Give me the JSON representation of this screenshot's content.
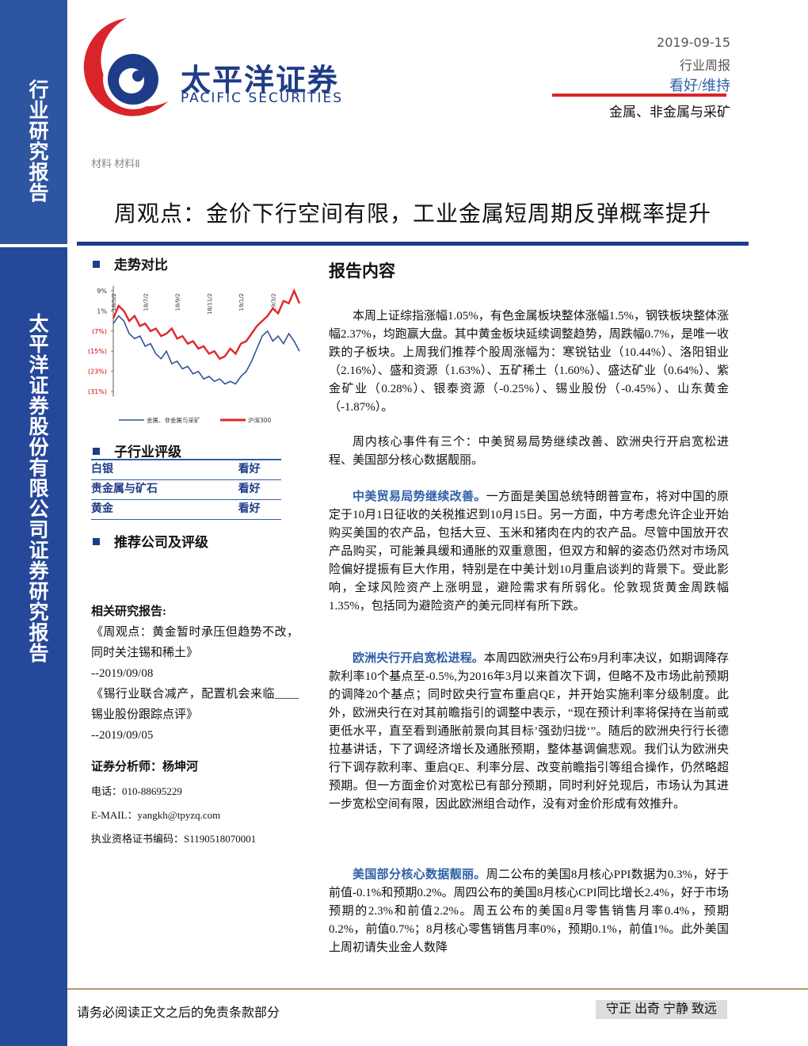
{
  "sidebar": {
    "top": "行业研究报告",
    "bottom": "太平洋证券股份有限公司证券研究报告"
  },
  "logo": {
    "name": "太平洋证券",
    "english": "PACIFIC SECURITIES"
  },
  "header": {
    "date": "2019-09-15",
    "report_type": "行业周报",
    "rating": "看好/维持",
    "sector": "金属、非金属与采矿",
    "category": "材料 材料Ⅱ",
    "title": "周观点：金价下行空间有限，工业金属短周期反弹概率提升"
  },
  "left": {
    "trend_heading": "走势对比",
    "rating_heading": "子行业评级",
    "ratings": [
      [
        "白银",
        "看好"
      ],
      [
        "贵金属与矿石",
        "看好"
      ],
      [
        "黄金",
        "看好"
      ]
    ],
    "recommend_heading": "推荐公司及评级",
    "related_heading": "相关研究报告:",
    "related": [
      {
        "title": "《周观点：黄金暂时承压但趋势不改，同时关注锡和稀土》",
        "date": "--2019/09/08"
      },
      {
        "title": "《锡行业联合减产，配置机会来临____锡业股份跟踪点评》",
        "date": "--2019/09/05"
      }
    ],
    "analyst": "证券分析师：杨坤河",
    "phone": "电话：010-88695229",
    "email": "E-MAIL：yangkh@tpyzq.com",
    "license": "执业资格证书编码：S1190518070001"
  },
  "chart_data": {
    "type": "line",
    "categories": [
      "18/5/2",
      null,
      null,
      null,
      null,
      null,
      "18/7/2",
      null,
      null,
      null,
      null,
      null,
      "18/9/2",
      null,
      null,
      null,
      null,
      null,
      "18/11/2",
      null,
      null,
      null,
      null,
      null,
      "19/1/2",
      null,
      null,
      null,
      null,
      null,
      "19/3/2",
      null,
      null,
      null,
      null,
      null
    ],
    "series": [
      {
        "name": "金属、非金属与采矿",
        "color": "#2f5597",
        "values": [
          -4,
          -1,
          -3,
          -8,
          -10,
          -9,
          -13,
          -12,
          -16,
          -18,
          -15,
          -20,
          -19,
          -22,
          -21,
          -24,
          -23,
          -26,
          -25,
          -27,
          -26,
          -28,
          -27,
          -28,
          -25,
          -23,
          -19,
          -14,
          -9,
          -7,
          -11,
          -9,
          -12,
          -8,
          -11,
          -15
        ]
      },
      {
        "name": "沪深300",
        "color": "#e0262c",
        "values": [
          -2,
          3,
          1,
          -3,
          -1,
          -5,
          -4,
          -7,
          -6,
          -9,
          -8,
          -6,
          -10,
          -9,
          -12,
          -11,
          -14,
          -13,
          -16,
          -15,
          -18,
          -17,
          -14,
          -16,
          -12,
          -11,
          -8,
          -5,
          -3,
          -1,
          2,
          0,
          5,
          4,
          9,
          4
        ]
      }
    ],
    "ylim": [
      -33,
      11
    ],
    "yticks": [
      {
        "value": 9,
        "label": "9%"
      },
      {
        "value": 1,
        "label": "1%"
      },
      {
        "value": -7,
        "label": "(7%)"
      },
      {
        "value": -15,
        "label": "(15%)"
      },
      {
        "value": -23,
        "label": "(23%)"
      },
      {
        "value": -31,
        "label": "(31%)"
      }
    ]
  },
  "content": {
    "heading": "报告内容",
    "paragraphs": [
      {
        "text": "本周上证综指涨幅1.05%，有色金属板块整体涨幅1.5%，钢铁板块整体涨幅2.37%，均跑赢大盘。其中黄金板块延续调整趋势，周跌幅0.7%，是唯一收跌的子板块。上周我们推荐个股周涨幅为：寒锐钴业（10.44%）、洛阳钼业（2.16%）、盛和资源（1.63%）、五矿稀土（1.60%）、盛达矿业（0.64%）、紫金矿业（0.28%）、银泰资源（-0.25%）、锡业股份（-0.45%）、山东黄金（-1.87%）。"
      },
      {
        "text": "周内核心事件有三个：中美贸易局势继续改善、欧洲央行开启宽松进程、美国部分核心数据靓丽。"
      },
      {
        "lead": "中美贸易局势继续改善。",
        "text": "一方面是美国总统特朗普宣布，将对中国的原定于10月1日征收的关税推迟到10月15日。另一方面，中方考虑允许企业开始购买美国的农产品，包括大豆、玉米和猪肉在内的农产品。尽管中国放开农产品购买，可能兼具缓和通胀的双重意图，但双方和解的姿态仍然对市场风险偏好提振有巨大作用，特别是在中美计划10月重启谈判的背景下。受此影响，全球风险资产上涨明显，避险需求有所弱化。伦敦现货黄金周跌幅1.35%，包括同为避险资产的美元同样有所下跌。"
      },
      {
        "lead": "欧洲央行开启宽松进程。",
        "text": "本周四欧洲央行公布9月利率决议，如期调降存款利率10个基点至-0.5%,为2016年3月以来首次下调，但略不及市场此前预期的调降20个基点；同时欧央行宣布重启QE，并开始实施利率分级制度。此外，欧洲央行在对其前瞻指引的调整中表示，“现在预计利率将保持在当前或更低水平，直至看到通胀前景向其目标’强劲归拢‘”。随后的欧洲央行行长德拉基讲话，下了调经济增长及通胀预期，整体基调偏悲观。我们认为欧洲央行下调存款利率、重启QE、利率分层、改变前瞻指引等组合操作，仍然略超预期。但一方面金价对宽松已有部分预期，同时利好兑现后，市场认为其进一步宽松空间有限，因此欧洲组合动作，没有对金价形成有效推升。"
      },
      {
        "lead": "美国部分核心数据靓丽。",
        "text": "周二公布的美国8月核心PPI数据为0.3%，好于前值-0.1%和预期0.2%。周四公布的美国8月核心CPI同比增长2.4%，好于市场预期的2.3%和前值2.2%。周五公布的美国8月零售销售月率0.4%，预期0.2%，前值0.7%；8月核心零售销售月率0%，预期0.1%，前值1%。此外美国上周初请失业金人数降"
      }
    ]
  },
  "footer": {
    "disclaimer": "请务必阅读正文之后的免责条款部分",
    "motto": "守正 出奇 宁静 致远"
  }
}
